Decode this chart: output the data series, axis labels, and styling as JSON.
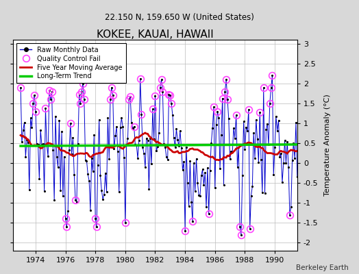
{
  "title": "KOKEE, KAUAI, HAWAII",
  "subtitle": "22.150 N, 159.650 W (United States)",
  "ylabel": "Temperature Anomaly (°C)",
  "xlabel_note": "Berkeley Earth",
  "ylim": [
    -2.2,
    3.1
  ],
  "yticks": [
    -2,
    -1.5,
    -1,
    -0.5,
    0,
    0.5,
    1,
    1.5,
    2,
    2.5,
    3
  ],
  "xlim": [
    1972.5,
    1991.5
  ],
  "xticks": [
    1974,
    1976,
    1978,
    1980,
    1982,
    1984,
    1986,
    1988,
    1990
  ],
  "background_color": "#d8d8d8",
  "plot_bg_color": "#ffffff",
  "line_color": "#0000cc",
  "ma_color": "#cc0000",
  "trend_color": "#00cc00",
  "qc_color": "#ff44ff",
  "title_fontsize": 11,
  "subtitle_fontsize": 8.5,
  "tick_fontsize": 8,
  "ylabel_fontsize": 8
}
